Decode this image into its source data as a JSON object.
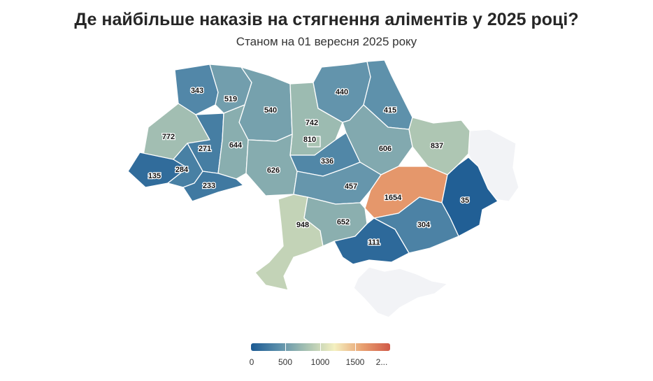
{
  "title": "Де найбільше наказів на стягнення аліментів у 2025 році?",
  "subtitle": "Станом на 01 вересня 2025 року",
  "colors": {
    "scale": [
      "#1b5a93",
      "#5b8fab",
      "#a7c2b2",
      "#f4f0c0",
      "#e8a070",
      "#d05a48"
    ],
    "no_data": "#f2f3f6",
    "border": "#ffffff"
  },
  "legend": {
    "min": 0,
    "max": 2000,
    "ticks": [
      "0",
      "500",
      "1000",
      "1500",
      "2..."
    ]
  },
  "regions": [
    {
      "id": "volyn",
      "value": 343
    },
    {
      "id": "rivne",
      "value": 519
    },
    {
      "id": "zhytomyr",
      "value": 540
    },
    {
      "id": "kyiv-oblast",
      "value": 742
    },
    {
      "id": "kyiv-city",
      "value": 810
    },
    {
      "id": "chernihiv",
      "value": 440
    },
    {
      "id": "sumy",
      "value": 415
    },
    {
      "id": "lviv",
      "value": 772
    },
    {
      "id": "ternopil",
      "value": 271
    },
    {
      "id": "khmelnytskyi",
      "value": 644
    },
    {
      "id": "cherkasy",
      "value": 336
    },
    {
      "id": "poltava",
      "value": 606
    },
    {
      "id": "kharkiv",
      "value": 837
    },
    {
      "id": "zakarpattia",
      "value": 135
    },
    {
      "id": "ivano-frankivsk",
      "value": 284
    },
    {
      "id": "chernivtsi",
      "value": 233
    },
    {
      "id": "vinnytsia",
      "value": 626
    },
    {
      "id": "kirovohrad",
      "value": 457
    },
    {
      "id": "dnipropetrovsk",
      "value": 1654
    },
    {
      "id": "donetsk",
      "value": 35
    },
    {
      "id": "odesa",
      "value": 948
    },
    {
      "id": "mykolaiv",
      "value": 652
    },
    {
      "id": "zaporizhzhia",
      "value": 304
    },
    {
      "id": "kherson",
      "value": 111
    },
    {
      "id": "luhansk",
      "value": null
    },
    {
      "id": "crimea",
      "value": null
    }
  ]
}
